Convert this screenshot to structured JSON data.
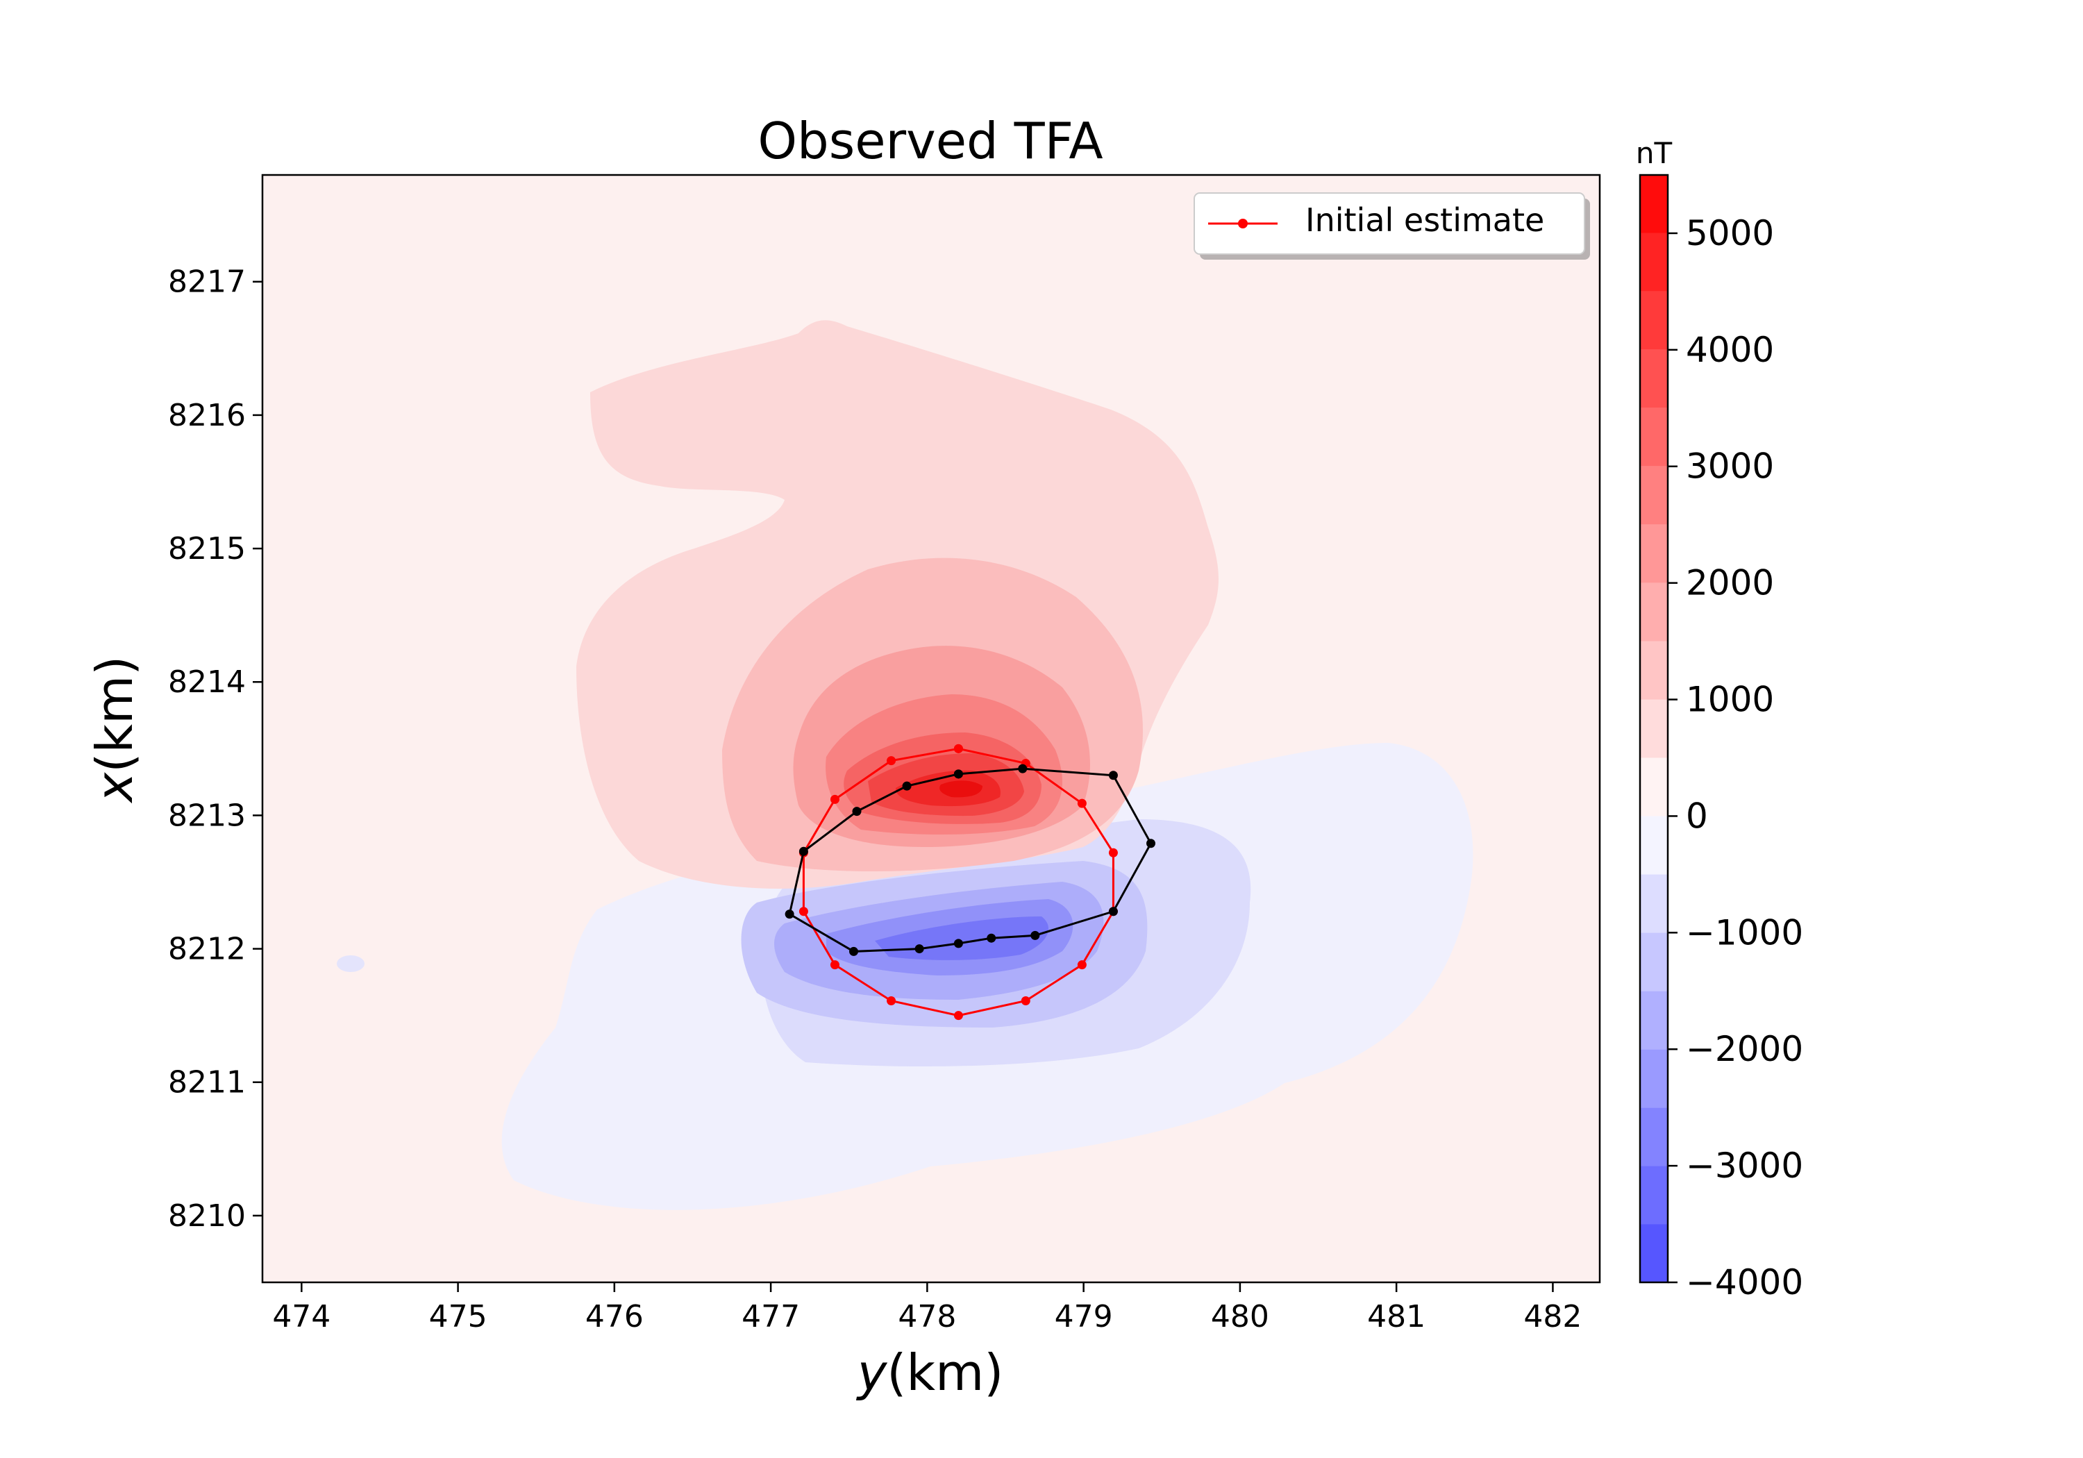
{
  "chart_data": {
    "type": "heatmap",
    "title": "Observed TFA",
    "xlabel_italic": "y",
    "xlabel_rest": "(km)",
    "ylabel_italic": "x",
    "ylabel_rest": "(km)",
    "xlim": [
      473.75,
      482.3
    ],
    "ylim": [
      8209.5,
      8217.8
    ],
    "x_ticks": [
      474,
      475,
      476,
      477,
      478,
      479,
      480,
      481,
      482
    ],
    "y_ticks": [
      8210,
      8211,
      8212,
      8213,
      8214,
      8215,
      8216,
      8217
    ],
    "colorbar": {
      "label": "nT",
      "min": -4000,
      "max": 5500,
      "ticks": [
        -4000,
        -3000,
        -2000,
        -1000,
        0,
        1000,
        2000,
        3000,
        4000,
        5000
      ],
      "tick_labels": [
        "−4000",
        "−3000",
        "−2000",
        "−1000",
        "0",
        "1000",
        "2000",
        "3000",
        "4000",
        "5000"
      ],
      "level_step": 500,
      "neg_color": "#4b4bff",
      "pos_color": "#ff0000",
      "bg_color": "#fdf0ef"
    },
    "legend": {
      "label": "Initial estimate",
      "placement": "upper right",
      "color": "#ff0000"
    },
    "series": [
      {
        "name": "Initial estimate",
        "color": "#ff0000",
        "x": [
          478.2,
          478.63,
          478.99,
          479.19,
          479.19,
          478.99,
          478.63,
          478.2,
          477.77,
          477.41,
          477.21,
          477.21,
          477.41,
          477.77,
          478.2
        ],
        "y": [
          8213.5,
          8213.39,
          8213.09,
          8212.72,
          8212.28,
          8211.88,
          8211.61,
          8211.5,
          8211.61,
          8211.88,
          8212.28,
          8212.72,
          8213.12,
          8213.41,
          8213.5
        ]
      },
      {
        "color": "#000000",
        "x": [
          478.2,
          478.61,
          479.19,
          479.43,
          479.19,
          478.69,
          478.41,
          478.2,
          477.95,
          477.53,
          477.12,
          477.21,
          477.55,
          477.87,
          478.2
        ],
        "y": [
          8213.31,
          8213.35,
          8213.3,
          8212.79,
          8212.28,
          8212.1,
          8212.08,
          8212.04,
          8212.0,
          8211.98,
          8212.26,
          8212.73,
          8213.03,
          8213.22,
          8213.31
        ]
      }
    ],
    "anomalies": [
      {
        "sign": "positive",
        "peak_nT": 5000,
        "center": [
          478.3,
          8213.2
        ]
      },
      {
        "sign": "negative",
        "peak_nT": -3500,
        "center": [
          478.2,
          8212.0
        ]
      }
    ]
  }
}
